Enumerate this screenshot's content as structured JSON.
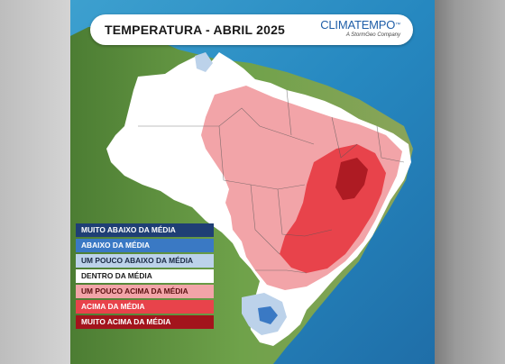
{
  "header": {
    "title": "TEMPERATURA - ABRIL 2025",
    "logo_text": "CLIMATEMPO",
    "logo_subtext": "A StormGeo Company"
  },
  "legend": {
    "items": [
      {
        "label": "MUITO ABAIXO DA MÉDIA",
        "color": "#1f3f75",
        "text_color": "#ffffff"
      },
      {
        "label": "ABAIXO DA MÉDIA",
        "color": "#3a79c4",
        "text_color": "#ffffff"
      },
      {
        "label": "UM POUCO ABAIXO DA MÉDIA",
        "color": "#bcd2ea",
        "text_color": "#1a2a44"
      },
      {
        "label": "DENTRO DA MÉDIA",
        "color": "#ffffff",
        "text_color": "#1a1a1a"
      },
      {
        "label": "UM POUCO ACIMA DA MÉDIA",
        "color": "#f2a4a8",
        "text_color": "#5a1010"
      },
      {
        "label": "ACIMA DA MÉDIA",
        "color": "#e8434b",
        "text_color": "#ffffff"
      },
      {
        "label": "MUITO ACIMA DA MÉDIA",
        "color": "#a3141c",
        "text_color": "#ffffff"
      }
    ]
  },
  "colors": {
    "ocean": "#2e8ec4",
    "land": "#6e9e4a",
    "dentro": "#ffffff",
    "um_pouco_acima": "#f2a4a8",
    "acima": "#e8434b",
    "muito_acima": "#a3141c",
    "um_pouco_abaixo": "#bcd2ea",
    "abaixo": "#3a79c4"
  }
}
